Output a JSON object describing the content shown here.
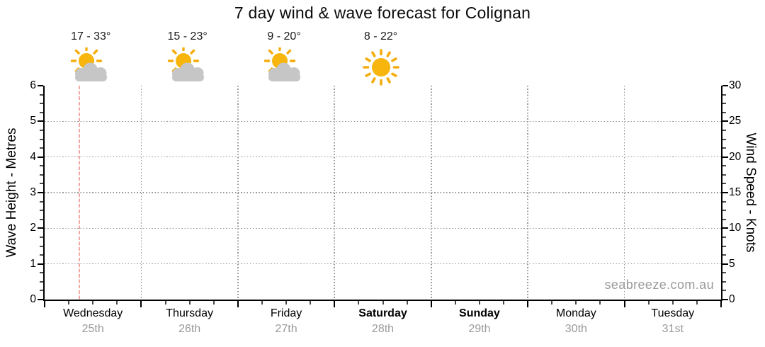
{
  "title": "7 day wind & wave forecast for Colignan",
  "watermark": "seabreeze.com.au",
  "colors": {
    "sun": "#F7B50D",
    "sun_ray": "#F5AC0C",
    "cloud": "#C6C6C6",
    "grid": "#979797",
    "current_time_line": "#F3A8A3",
    "date_label": "#999999",
    "axis": "#000000"
  },
  "chart_data": {
    "type": "bar",
    "note": "7-day forecast chart; no wave/wind series plotted yet (empty plot), only forecast headers",
    "title": "7 day wind & wave forecast for Colignan",
    "grid": true,
    "left_axis": {
      "label": "Wave Height - Metres",
      "min": 0,
      "max": 6,
      "tick_values": [
        0,
        1,
        2,
        3,
        4,
        5,
        6
      ],
      "minor_divisions_per_major": 4
    },
    "right_axis": {
      "label": "Wind Speed - Knots",
      "min": 0,
      "max": 30,
      "tick_values": [
        0,
        5,
        10,
        15,
        20,
        25,
        30
      ],
      "minor_divisions_per_major": 4
    },
    "x_axis": {
      "minor_ticks_per_day": 3,
      "current_time_marker_day_index": 0,
      "current_time_marker_day_fraction": 0.36
    },
    "days": [
      {
        "name": "Wednesday",
        "date": "25th",
        "weekend": false,
        "temp_range": "17 - 33°",
        "icon": "partly-cloudy"
      },
      {
        "name": "Thursday",
        "date": "26th",
        "weekend": false,
        "temp_range": "15 - 23°",
        "icon": "partly-cloudy"
      },
      {
        "name": "Friday",
        "date": "27th",
        "weekend": false,
        "temp_range": "9 - 20°",
        "icon": "partly-cloudy"
      },
      {
        "name": "Saturday",
        "date": "28th",
        "weekend": true,
        "temp_range": "8 - 22°",
        "icon": "sunny"
      },
      {
        "name": "Sunday",
        "date": "29th",
        "weekend": true,
        "temp_range": null,
        "icon": null
      },
      {
        "name": "Monday",
        "date": "30th",
        "weekend": false,
        "temp_range": null,
        "icon": null
      },
      {
        "name": "Tuesday",
        "date": "31st",
        "weekend": false,
        "temp_range": null,
        "icon": null
      }
    ],
    "series": []
  }
}
